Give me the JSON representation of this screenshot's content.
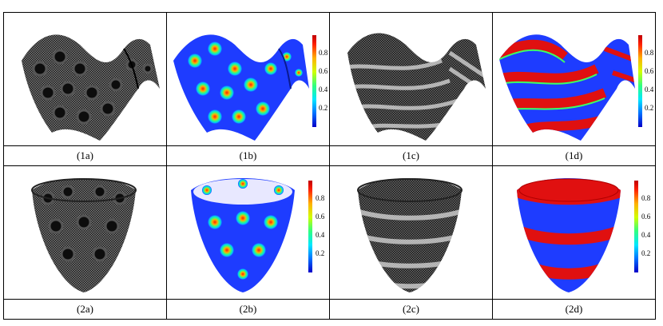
{
  "figure": {
    "rows": [
      {
        "panels": [
          {
            "caption": "(1a)",
            "surface": "saddle",
            "render": "mesh-spots"
          },
          {
            "caption": "(1b)",
            "surface": "saddle",
            "render": "color-spots",
            "colorbar": true
          },
          {
            "caption": "(1c)",
            "surface": "saddle",
            "render": "mesh-stripes"
          },
          {
            "caption": "(1d)",
            "surface": "saddle",
            "render": "color-stripes",
            "colorbar": true
          }
        ]
      },
      {
        "panels": [
          {
            "caption": "(2a)",
            "surface": "bowl",
            "render": "mesh-spots"
          },
          {
            "caption": "(2b)",
            "surface": "bowl",
            "render": "color-spots",
            "colorbar": true
          },
          {
            "caption": "(2c)",
            "surface": "bowl",
            "render": "mesh-stripes"
          },
          {
            "caption": "(2d)",
            "surface": "bowl",
            "render": "color-stripes",
            "colorbar": true
          }
        ]
      }
    ],
    "colorbar_ticks": [
      "0.8",
      "0.6",
      "0.4",
      "0.2"
    ],
    "colormap": [
      "#0000c8",
      "#0070ff",
      "#00e8ff",
      "#30ff80",
      "#d0ff00",
      "#ffb000",
      "#ff2000",
      "#c00000"
    ],
    "colors": {
      "mesh_dark": "#1a1a1a",
      "mesh_light": "#9a9a9a",
      "spot_blue": "#1e3cff",
      "stripe_red": "#e01010"
    }
  }
}
